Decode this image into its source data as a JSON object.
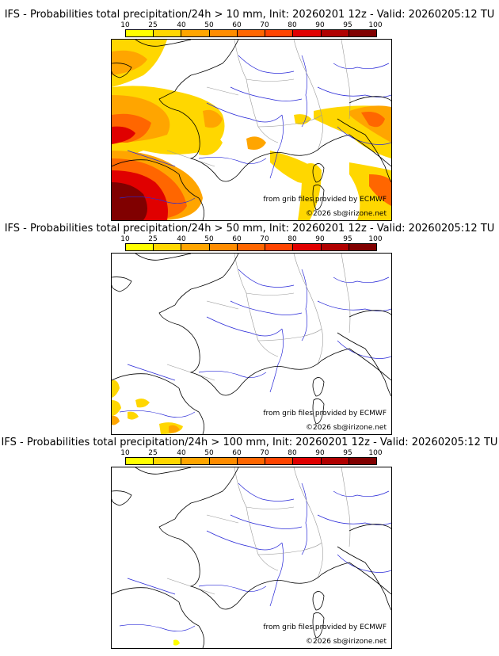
{
  "colorbar": {
    "ticks": [
      "10",
      "25",
      "40",
      "50",
      "60",
      "70",
      "80",
      "90",
      "95",
      "100"
    ],
    "colors": [
      "#ffff00",
      "#ffd700",
      "#ffa500",
      "#ff8c00",
      "#ff6600",
      "#ff4400",
      "#e00000",
      "#b00000",
      "#800000"
    ]
  },
  "panels": [
    {
      "title": "IFS - Probabilities total precipitation/24h > 10 mm, Init: 20260201 12z - Valid: 20260205:12 TU"
    },
    {
      "title": "IFS - Probabilities total precipitation/24h > 50 mm, Init: 20260201 12z - Valid: 20260205:12 TU"
    },
    {
      "title": "IFS - Probabilities total precipitation/24h > 100 mm, Init: 20260201 12z - Valid: 20260205:12 TU"
    }
  ],
  "credits": {
    "source": "from grib files provided by ECMWF",
    "copyright": "©2026 sb@irizone.net"
  },
  "colors": {
    "coast": "#000000",
    "rivers": "#2a2ad8",
    "borders": "#999999"
  }
}
